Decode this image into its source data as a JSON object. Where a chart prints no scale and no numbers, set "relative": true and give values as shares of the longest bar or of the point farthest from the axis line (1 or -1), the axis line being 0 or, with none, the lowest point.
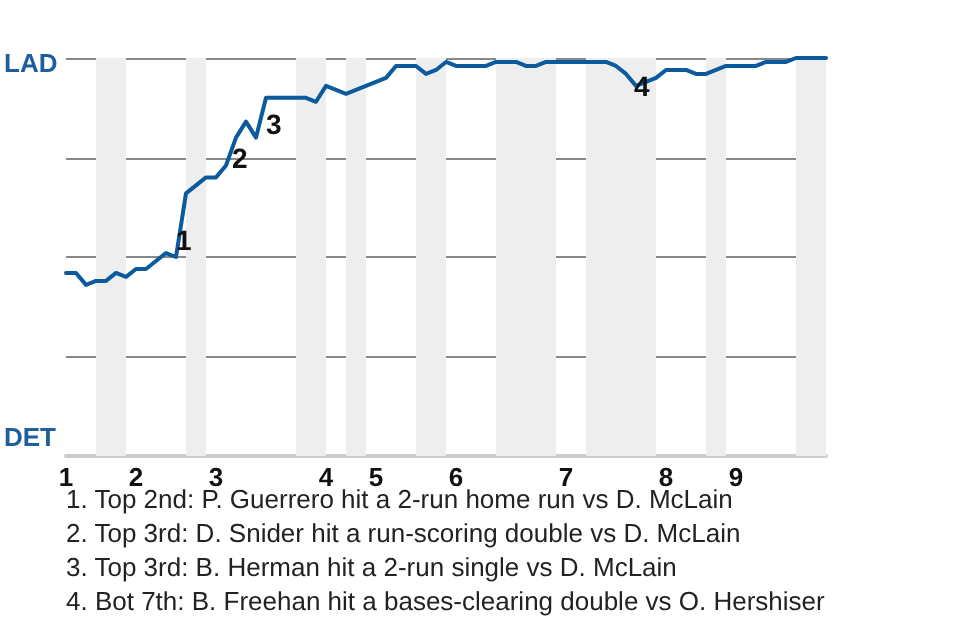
{
  "chart_data": {
    "type": "line",
    "relative": true,
    "categories": [
      "1",
      null,
      null,
      null,
      null,
      null,
      null,
      "2",
      null,
      null,
      null,
      null,
      null,
      null,
      null,
      "3",
      null,
      null,
      null,
      null,
      null,
      null,
      null,
      null,
      null,
      null,
      "4",
      null,
      null,
      null,
      null,
      "5",
      null,
      null,
      null,
      null,
      null,
      null,
      null,
      "6",
      null,
      null,
      null,
      null,
      null,
      null,
      null,
      null,
      null,
      null,
      "7",
      null,
      null,
      null,
      null,
      null,
      null,
      null,
      null,
      null,
      "8",
      null,
      null,
      null,
      null,
      null,
      null,
      "9",
      null,
      null,
      null,
      null,
      null,
      null,
      null,
      null,
      null
    ],
    "series": [
      {
        "color": "#0b5a9e",
        "values": [
          0.46,
          0.46,
          0.43,
          0.44,
          0.44,
          0.46,
          0.45,
          0.47,
          0.47,
          0.49,
          0.51,
          0.5,
          0.66,
          0.68,
          0.7,
          0.7,
          0.73,
          0.8,
          0.84,
          0.8,
          0.9,
          0.9,
          0.9,
          0.9,
          0.9,
          0.89,
          0.93,
          0.92,
          0.91,
          0.92,
          0.93,
          0.94,
          0.95,
          0.98,
          0.98,
          0.98,
          0.96,
          0.97,
          0.99,
          0.98,
          0.98,
          0.98,
          0.98,
          0.99,
          0.99,
          0.99,
          0.98,
          0.98,
          0.99,
          0.99,
          0.99,
          0.99,
          0.99,
          0.99,
          0.99,
          0.98,
          0.96,
          0.93,
          0.94,
          0.95,
          0.97,
          0.97,
          0.97,
          0.96,
          0.96,
          0.97,
          0.98,
          0.98,
          0.98,
          0.98,
          0.99,
          0.99,
          0.99,
          1,
          1,
          1,
          1
        ]
      }
    ],
    "grid": "y",
    "marker": "none",
    "line_style": "solid",
    "annotations": [
      "LAD",
      "DET",
      "1",
      "2",
      "3",
      "4",
      "1. Top 2nd: P. Guerrero hit a 2-run home run vs D. McLain",
      "2. Top 3rd: D. Snider hit a run-scoring double vs D. McLain",
      "3. Top 3rd: B. Herman hit a 2-run single vs D. McLain",
      "4. Bot 7th: B. Freehan hit a bases-clearing double vs O. Hershiser"
    ]
  }
}
